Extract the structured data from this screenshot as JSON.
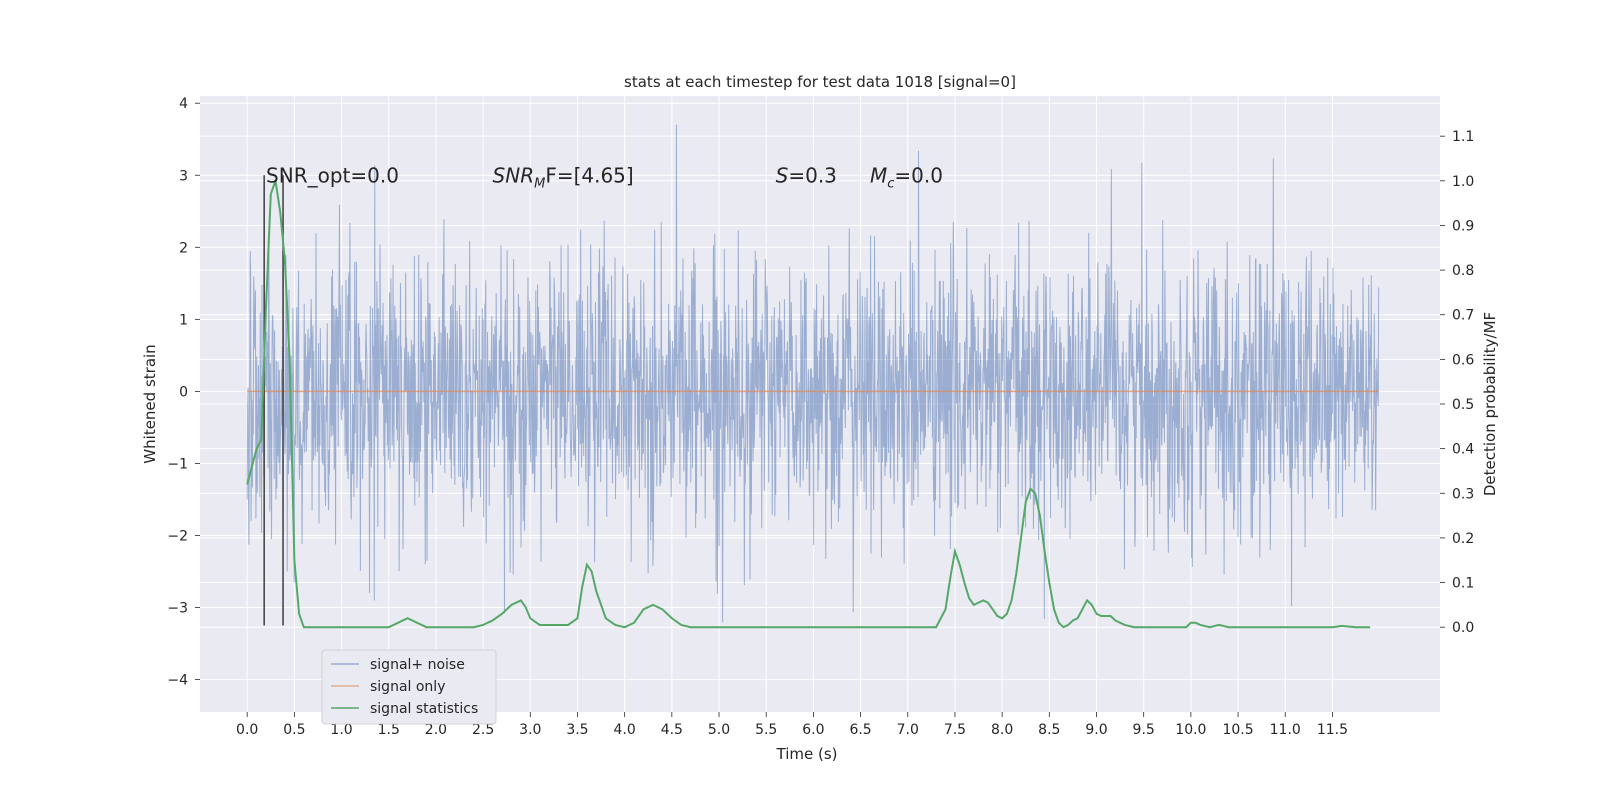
{
  "chart_data": {
    "type": "line",
    "title": "stats at each timestep for test data 1018 [signal=0]",
    "xlabel": "Time (s)",
    "ylabel_left": "Whitened strain",
    "ylabel_right": "Detection probability/MF",
    "xlim": [
      -0.5,
      12.64
    ],
    "ylim_left": [
      -4.45,
      4.1
    ],
    "ylim_right": [
      -0.19,
      1.19
    ],
    "x_ticks": [
      0.0,
      0.5,
      1.0,
      1.5,
      2.0,
      2.5,
      3.0,
      3.5,
      4.0,
      4.5,
      5.0,
      5.5,
      6.0,
      6.5,
      7.0,
      7.5,
      8.0,
      8.5,
      9.0,
      9.5,
      10.0,
      10.5,
      11.0,
      11.5
    ],
    "x_tick_labels": [
      "0.0",
      "0.5",
      "1.0",
      "1.5",
      "2.0",
      "2.5",
      "3.0",
      "3.5",
      "4.0",
      "4.5",
      "5.0",
      "5.5",
      "6.0",
      "6.5",
      "7.0",
      "7.5",
      "8.0",
      "8.5",
      "9.0",
      "9.5",
      "10.0",
      "10.5",
      "11.0",
      "11.5"
    ],
    "y_left_ticks": [
      -4,
      -3,
      -2,
      -1,
      0,
      1,
      2,
      3,
      4
    ],
    "y_left_tick_labels": [
      "−4",
      "−3",
      "−2",
      "−1",
      "0",
      "1",
      "2",
      "3",
      "4"
    ],
    "y_right_ticks": [
      0.0,
      0.1,
      0.2,
      0.3,
      0.4,
      0.5,
      0.6,
      0.7,
      0.8,
      0.9,
      1.0,
      1.1
    ],
    "y_right_tick_labels": [
      "0.0",
      "0.1",
      "0.2",
      "0.3",
      "0.4",
      "0.5",
      "0.6",
      "0.7",
      "0.8",
      "0.9",
      "1.0",
      "1.1"
    ],
    "grid": true,
    "legend_position": "lower-left",
    "series": [
      {
        "name": "signal+ noise",
        "axis": "left",
        "color": "#4c72b0",
        "kind": "noise",
        "x_range": [
          0.0,
          11.99
        ],
        "approx_std": 0.95,
        "approx_max": 3.7,
        "approx_min": -4.1
      },
      {
        "name": "signal only",
        "axis": "left",
        "color": "#dd8452",
        "x": [
          0.0,
          11.99
        ],
        "y": [
          0.0,
          0.0
        ]
      },
      {
        "name": "signal statistics",
        "axis": "right",
        "color": "#55a868",
        "x": [
          0.0,
          0.1,
          0.15,
          0.2,
          0.25,
          0.3,
          0.35,
          0.4,
          0.45,
          0.5,
          0.55,
          0.6,
          0.7,
          0.9,
          1.2,
          1.5,
          1.7,
          1.8,
          1.9,
          2.0,
          2.2,
          2.4,
          2.5,
          2.6,
          2.7,
          2.8,
          2.9,
          2.95,
          3.0,
          3.1,
          3.2,
          3.4,
          3.5,
          3.55,
          3.6,
          3.65,
          3.7,
          3.8,
          3.9,
          4.0,
          4.1,
          4.2,
          4.3,
          4.35,
          4.4,
          4.5,
          4.6,
          4.7,
          4.8,
          5.0,
          5.5,
          6.0,
          6.3,
          6.5,
          7.0,
          7.3,
          7.4,
          7.45,
          7.5,
          7.55,
          7.6,
          7.65,
          7.7,
          7.75,
          7.8,
          7.85,
          7.9,
          7.95,
          8.0,
          8.05,
          8.1,
          8.15,
          8.2,
          8.25,
          8.3,
          8.35,
          8.4,
          8.45,
          8.5,
          8.55,
          8.6,
          8.65,
          8.7,
          8.75,
          8.8,
          8.85,
          8.9,
          8.95,
          9.0,
          9.05,
          9.1,
          9.15,
          9.2,
          9.3,
          9.4,
          9.5,
          9.8,
          9.95,
          10.0,
          10.05,
          10.1,
          10.2,
          10.3,
          10.4,
          10.6,
          11.0,
          11.3,
          11.5,
          11.6,
          11.75,
          11.9
        ],
        "y": [
          0.32,
          0.4,
          0.42,
          0.72,
          0.97,
          1.0,
          0.93,
          0.82,
          0.6,
          0.15,
          0.03,
          0.0,
          0.0,
          0.0,
          0.0,
          0.0,
          0.02,
          0.01,
          0.0,
          0.0,
          0.0,
          0.0,
          0.005,
          0.015,
          0.03,
          0.05,
          0.06,
          0.045,
          0.02,
          0.005,
          0.005,
          0.005,
          0.02,
          0.09,
          0.14,
          0.125,
          0.08,
          0.02,
          0.005,
          0.0,
          0.01,
          0.04,
          0.05,
          0.045,
          0.04,
          0.02,
          0.005,
          0.0,
          0.0,
          0.0,
          0.0,
          0.0,
          0.0,
          0.0,
          0.0,
          0.0,
          0.04,
          0.11,
          0.17,
          0.14,
          0.1,
          0.065,
          0.05,
          0.055,
          0.06,
          0.055,
          0.04,
          0.025,
          0.02,
          0.03,
          0.06,
          0.12,
          0.2,
          0.28,
          0.31,
          0.3,
          0.25,
          0.17,
          0.1,
          0.04,
          0.01,
          0.0,
          0.005,
          0.015,
          0.02,
          0.04,
          0.06,
          0.05,
          0.03,
          0.025,
          0.025,
          0.025,
          0.015,
          0.005,
          0.0,
          0.0,
          0.0,
          0.0,
          0.01,
          0.01,
          0.005,
          0.0,
          0.005,
          0.0,
          0.0,
          0.0,
          0.0,
          0.0,
          0.003,
          0.0,
          0.0
        ]
      }
    ],
    "vertical_lines": {
      "color": "#3f3f3f",
      "x": [
        0.18,
        0.38
      ],
      "y_top_left_units": 3.0,
      "y_bottom_left_units": -3.25
    },
    "annotations": [
      {
        "text": "SNR_opt=0.0",
        "x": 0.2,
        "y": 3.0
      },
      {
        "text": "SNR",
        "sub": "M",
        "rest": "F=[4.65]",
        "x": 2.6,
        "y": 3.0,
        "italic_part": true
      },
      {
        "text": "S",
        "rest": "=0.3",
        "x": 5.6,
        "y": 3.0,
        "italic_part": true
      },
      {
        "text": "M",
        "sub": "c",
        "rest": "=0.0",
        "x": 6.6,
        "y": 3.0,
        "italic_part": true
      }
    ],
    "legend": [
      "signal+ noise",
      "signal only",
      "signal statistics"
    ]
  }
}
